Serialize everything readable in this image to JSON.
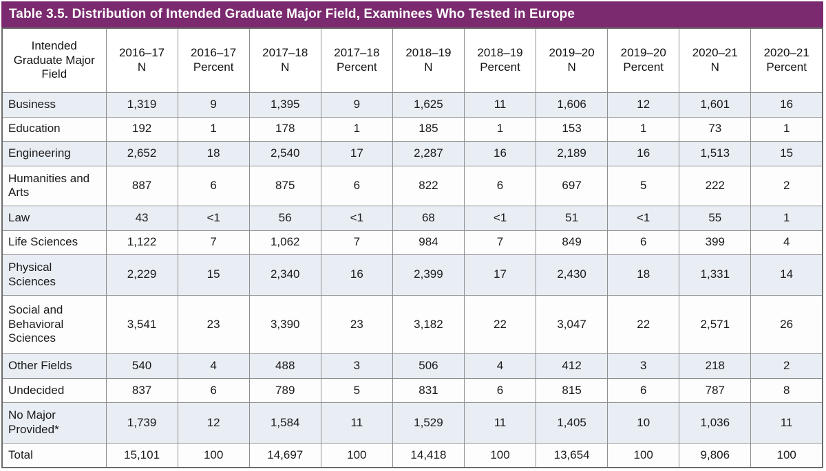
{
  "title": "Table 3.5. Distribution of Intended Graduate Major Field, Examinees Who Tested in Europe",
  "colors": {
    "title_bar": "#7b2a6f",
    "title_text": "#ffffff",
    "shaded_row": "#e9edf4",
    "plain_row": "#fdfdfe",
    "grid_line": "#8f8f8f",
    "outer_border": "#6b6b6b",
    "body_text": "#1b1b1b"
  },
  "table": {
    "header": {
      "field_label": "Intended Graduate Major Field",
      "columns": [
        {
          "year": "2016–17",
          "measure": "N"
        },
        {
          "year": "2016–17",
          "measure": "Percent"
        },
        {
          "year": "2017–18",
          "measure": "N"
        },
        {
          "year": "2017–18",
          "measure": "Percent"
        },
        {
          "year": "2018–19",
          "measure": "N"
        },
        {
          "year": "2018–19",
          "measure": "Percent"
        },
        {
          "year": "2019–20",
          "measure": "N"
        },
        {
          "year": "2019–20",
          "measure": "Percent"
        },
        {
          "year": "2020–21",
          "measure": "N"
        },
        {
          "year": "2020–21",
          "measure": "Percent"
        }
      ]
    },
    "rows": [
      {
        "label": "Business",
        "lines": 1,
        "values": [
          "1,319",
          "9",
          "1,395",
          "9",
          "1,625",
          "11",
          "1,606",
          "12",
          "1,601",
          "16"
        ]
      },
      {
        "label": "Education",
        "lines": 1,
        "values": [
          "192",
          "1",
          "178",
          "1",
          "185",
          "1",
          "153",
          "1",
          "73",
          "1"
        ]
      },
      {
        "label": "Engineering",
        "lines": 1,
        "values": [
          "2,652",
          "18",
          "2,540",
          "17",
          "2,287",
          "16",
          "2,189",
          "16",
          "1,513",
          "15"
        ]
      },
      {
        "label": "Humanities and Arts",
        "lines": 2,
        "values": [
          "887",
          "6",
          "875",
          "6",
          "822",
          "6",
          "697",
          "5",
          "222",
          "2"
        ]
      },
      {
        "label": "Law",
        "lines": 1,
        "values": [
          "43",
          "<1",
          "56",
          "<1",
          "68",
          "<1",
          "51",
          "<1",
          "55",
          "1"
        ]
      },
      {
        "label": "Life Sciences",
        "lines": 1,
        "values": [
          "1,122",
          "7",
          "1,062",
          "7",
          "984",
          "7",
          "849",
          "6",
          "399",
          "4"
        ]
      },
      {
        "label": "Physical Sciences",
        "lines": 2,
        "values": [
          "2,229",
          "15",
          "2,340",
          "16",
          "2,399",
          "17",
          "2,430",
          "18",
          "1,331",
          "14"
        ]
      },
      {
        "label": "Social and Behavioral Sciences",
        "lines": 3,
        "values": [
          "3,541",
          "23",
          "3,390",
          "23",
          "3,182",
          "22",
          "3,047",
          "22",
          "2,571",
          "26"
        ]
      },
      {
        "label": "Other Fields",
        "lines": 1,
        "values": [
          "540",
          "4",
          "488",
          "3",
          "506",
          "4",
          "412",
          "3",
          "218",
          "2"
        ]
      },
      {
        "label": "Undecided",
        "lines": 1,
        "values": [
          "837",
          "6",
          "789",
          "5",
          "831",
          "6",
          "815",
          "6",
          "787",
          "8"
        ]
      },
      {
        "label": "No Major Provided*",
        "lines": 2,
        "values": [
          "1,739",
          "12",
          "1,584",
          "11",
          "1,529",
          "11",
          "1,405",
          "10",
          "1,036",
          "11"
        ]
      },
      {
        "label": "Total",
        "lines": 1,
        "values": [
          "15,101",
          "100",
          "14,697",
          "100",
          "14,418",
          "100",
          "13,654",
          "100",
          "9,806",
          "100"
        ]
      }
    ]
  }
}
